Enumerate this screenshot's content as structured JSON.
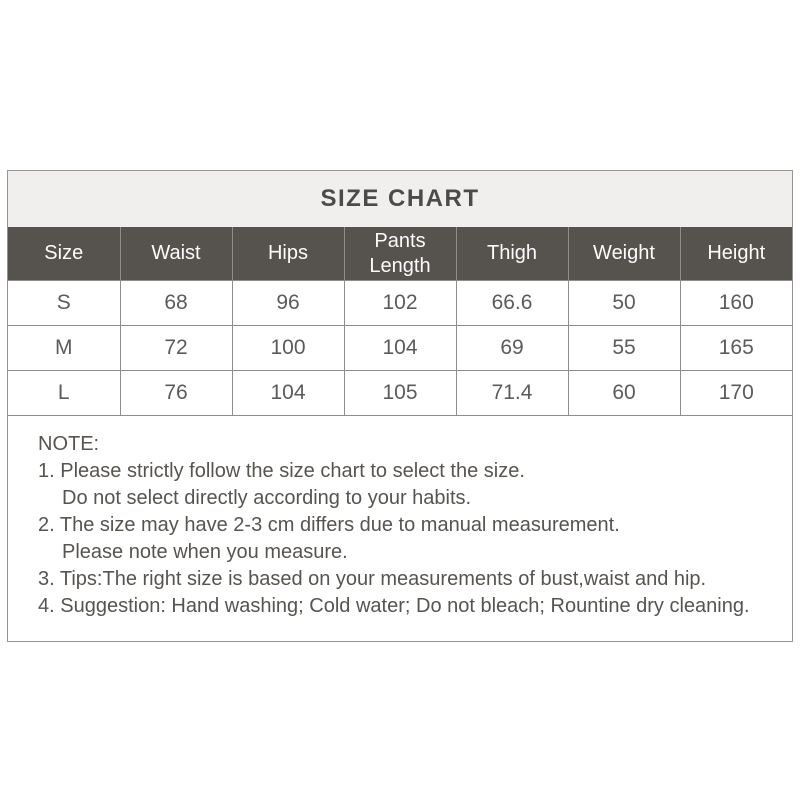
{
  "title": "SIZE CHART",
  "colors": {
    "title_bar_bg": "#f0efee",
    "title_text": "#4c4b49",
    "header_bg": "#56524d",
    "header_text": "#fcfcfc",
    "body_text": "#5b5b5b",
    "note_text": "#57544f",
    "grid_border": "#8d8d8d",
    "outer_border": "#97938e"
  },
  "table": {
    "headers": [
      "Size",
      "Waist",
      "Hips",
      "Pants Length",
      "Thigh",
      "Weight",
      "Height"
    ],
    "rows": [
      [
        "S",
        "68",
        "96",
        "102",
        "66.6",
        "50",
        "160"
      ],
      [
        "M",
        "72",
        "100",
        "104",
        "69",
        "55",
        "165"
      ],
      [
        "L",
        "76",
        "104",
        "105",
        "71.4",
        "60",
        "170"
      ]
    ]
  },
  "note": {
    "heading": "NOTE:",
    "lines": [
      {
        "text": "1. Please strictly follow the size chart to select the size.",
        "indent": false
      },
      {
        "text": "Do not select directly according to your habits.",
        "indent": true
      },
      {
        "text": "2. The size may have 2-3 cm differs due to manual measurement.",
        "indent": false
      },
      {
        "text": "Please note when you measure.",
        "indent": true
      },
      {
        "text": "3. Tips:The right size is based on your measurements of bust,waist and hip.",
        "indent": false
      },
      {
        "text": "4. Suggestion: Hand washing; Cold water; Do not bleach; Rountine dry cleaning.",
        "indent": false
      }
    ]
  },
  "chart_data": {
    "type": "table",
    "title": "SIZE CHART",
    "columns": [
      "Size",
      "Waist",
      "Hips",
      "Pants Length",
      "Thigh",
      "Weight",
      "Height"
    ],
    "rows": [
      [
        "S",
        68,
        96,
        102,
        66.6,
        50,
        160
      ],
      [
        "M",
        72,
        100,
        104,
        69,
        55,
        165
      ],
      [
        "L",
        76,
        104,
        105,
        71.4,
        60,
        170
      ]
    ],
    "notes": [
      "1. Please strictly follow the size chart to select the size. Do not select directly according to your habits.",
      "2. The size may have 2-3 cm differs due to manual measurement. Please note when you measure.",
      "3. Tips:The right size is based on your measurements of bust,waist and hip.",
      "4. Suggestion: Hand washing; Cold water; Do not bleach; Rountine dry cleaning."
    ]
  }
}
